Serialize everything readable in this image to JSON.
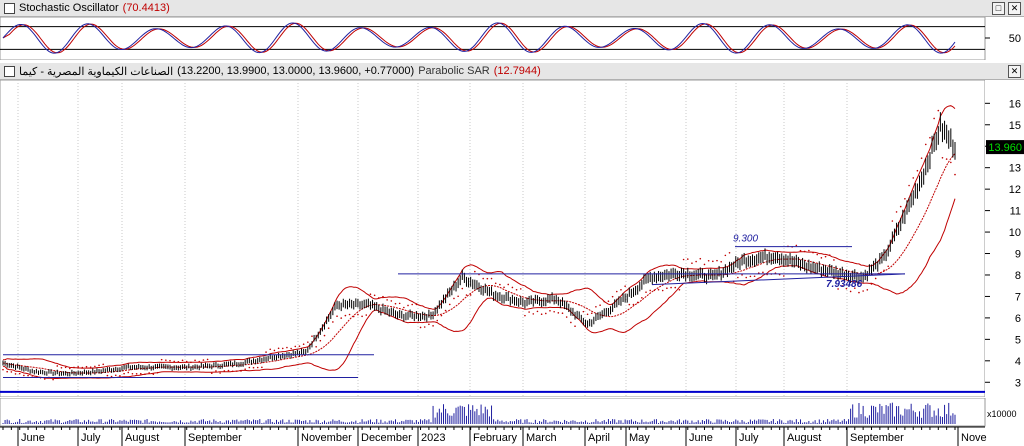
{
  "stoch": {
    "title": "Stochastic Oscillator",
    "value": "(70.4413)",
    "axis_label": "50"
  },
  "main": {
    "title": "الصناعات الكيماوية المصرية - كيما",
    "ohlc": "(13.2200, 13.9900, 13.0000, 13.9600, +0.77000)",
    "sar_label": "Parabolic SAR",
    "sar_value": "(12.7944)",
    "last_price_label": "13.960",
    "annotation_high": "9.300",
    "annotation_low": "7.93486"
  },
  "volume": {
    "scale_label": "x10000"
  },
  "buttons": {
    "restore": "□",
    "close": "✕"
  },
  "colors": {
    "price": "#000000",
    "bands": "#c00000",
    "sar": "#c00000",
    "trendline": "#2020a0",
    "stoch_k": "#2020a0",
    "stoch_d": "#c00000",
    "volume": "#2020a0"
  },
  "chart_data": {
    "type": "line",
    "title": "الصناعات الكيماوية المصرية - كيما",
    "y_ticks": [
      3,
      4,
      5,
      6,
      7,
      8,
      9,
      10,
      11,
      12,
      13,
      14,
      15,
      16
    ],
    "ylim": [
      2.5,
      16.9
    ],
    "x_labels": [
      "June",
      "July",
      "August",
      "September",
      "November",
      "December",
      "2023",
      "February",
      "March",
      "April",
      "May",
      "June",
      "July",
      "August",
      "September",
      "Nove"
    ],
    "series": [
      {
        "name": "Price",
        "x_index": [
          0,
          15,
          30,
          45,
          60,
          75,
          90,
          105,
          115,
          130,
          145,
          160,
          175,
          190,
          205,
          220,
          235,
          250,
          265,
          280,
          295,
          310,
          325,
          340,
          355,
          370,
          385,
          400,
          412,
          422,
          430,
          440,
          449,
          456
        ],
        "values": [
          3.9,
          3.5,
          3.4,
          3.5,
          3.7,
          3.7,
          3.7,
          3.8,
          3.9,
          4.2,
          4.4,
          6.6,
          6.6,
          6.1,
          6.1,
          7.9,
          7.1,
          6.7,
          6.9,
          5.7,
          6.7,
          7.9,
          8.1,
          7.9,
          8.7,
          8.9,
          8.4,
          8.1,
          7.9,
          8.8,
          10.4,
          12.5,
          14.9,
          13.96
        ]
      }
    ],
    "annotations": [
      "9.300",
      "7.93486"
    ],
    "grid": true
  }
}
